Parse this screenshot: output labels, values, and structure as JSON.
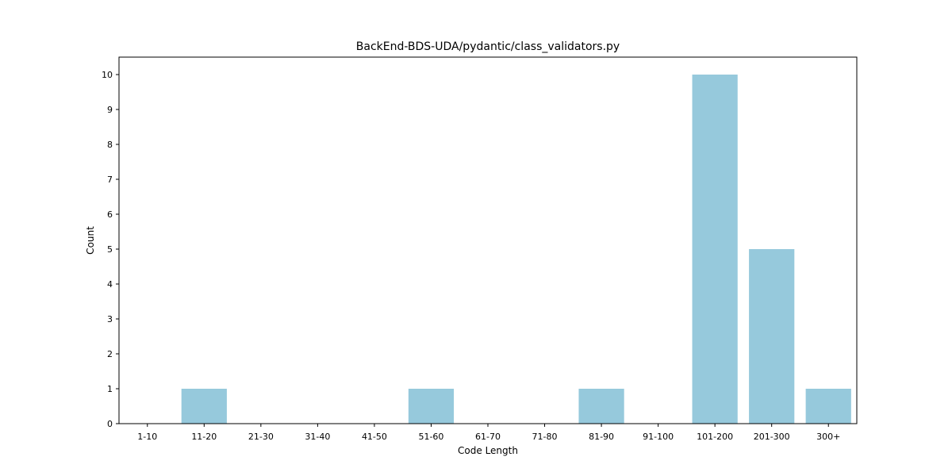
{
  "chart_data": {
    "type": "bar",
    "title": "BackEnd-BDS-UDA/pydantic/class_validators.py",
    "xlabel": "Code Length",
    "ylabel": "Count",
    "categories": [
      "1-10",
      "11-20",
      "21-30",
      "31-40",
      "41-50",
      "51-60",
      "61-70",
      "71-80",
      "81-90",
      "91-100",
      "101-200",
      "201-300",
      "300+"
    ],
    "values": [
      0,
      1,
      0,
      0,
      0,
      1,
      0,
      0,
      1,
      0,
      10,
      5,
      1
    ],
    "ylim": [
      0,
      10.5
    ],
    "yticks": [
      0,
      1,
      2,
      3,
      4,
      5,
      6,
      7,
      8,
      9,
      10
    ],
    "bar_color": "#96c9dc",
    "grid": false,
    "legend": "none"
  }
}
